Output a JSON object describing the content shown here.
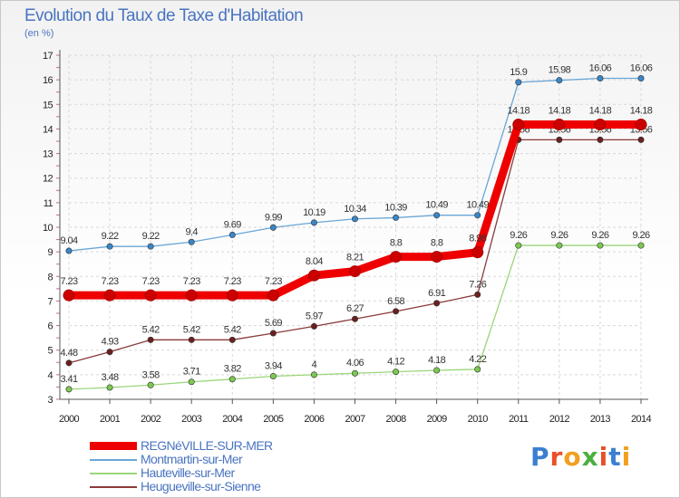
{
  "header": {
    "title": "Evolution du Taux de Taxe d'Habitation",
    "unit": "(en %)"
  },
  "logo": {
    "text": "Proxiti"
  },
  "chart_data": {
    "type": "line",
    "title": "Evolution du Taux de Taxe d'Habitation",
    "ylabel": "(en %)",
    "xlabel": "",
    "x": [
      2000,
      2001,
      2002,
      2003,
      2004,
      2005,
      2006,
      2007,
      2008,
      2009,
      2010,
      2011,
      2012,
      2013,
      2014
    ],
    "ylim": [
      3,
      17
    ],
    "yticks": [
      3,
      4,
      5,
      6,
      7,
      8,
      9,
      10,
      11,
      12,
      13,
      14,
      15,
      16,
      17
    ],
    "grid": true,
    "legend_position": "bottom-left",
    "series": [
      {
        "name": "REGNéVILLE-SUR-MER",
        "values": [
          7.23,
          7.23,
          7.23,
          7.23,
          7.23,
          7.23,
          8.04,
          8.21,
          8.8,
          8.8,
          8.98,
          14.18,
          14.18,
          14.18,
          14.18
        ],
        "labels": [
          "7.23",
          "7.23",
          "7.23",
          "7.23",
          "7.23",
          "7.23",
          "8.04",
          "8.21",
          "8.8",
          "8.8",
          "8.98",
          "14.18",
          "14.18",
          "14.18",
          "14.18"
        ],
        "color": "#ee0000",
        "marker": "#cc0000"
      },
      {
        "name": "Montmartin-sur-Mer",
        "values": [
          9.04,
          9.22,
          9.22,
          9.4,
          9.69,
          9.99,
          10.19,
          10.34,
          10.39,
          10.49,
          10.49,
          15.9,
          15.98,
          16.06,
          16.06
        ],
        "labels": [
          "9.04",
          "9.22",
          "9.22",
          "9.4",
          "9.69",
          "9.99",
          "10.19",
          "10.34",
          "10.39",
          "10.49",
          "10.49",
          "15.9",
          "15.98",
          "16.06",
          "16.06"
        ],
        "color": "#6aa6d6",
        "marker": "#3a86c6"
      },
      {
        "name": "Hauteville-sur-Mer",
        "values": [
          3.41,
          3.48,
          3.58,
          3.71,
          3.82,
          3.94,
          4,
          4.06,
          4.12,
          4.18,
          4.22,
          9.26,
          9.26,
          9.26,
          9.26
        ],
        "labels": [
          "3.41",
          "3.48",
          "3.58",
          "3.71",
          "3.82",
          "3.94",
          "4",
          "4.06",
          "4.12",
          "4.18",
          "4.22",
          "9.26",
          "9.26",
          "9.26",
          "9.26"
        ],
        "color": "#9ad67a",
        "marker": "#7cc852"
      },
      {
        "name": "Heugueville-sur-Sienne",
        "values": [
          4.48,
          4.93,
          5.42,
          5.42,
          5.42,
          5.69,
          5.97,
          6.27,
          6.58,
          6.91,
          7.26,
          13.56,
          13.56,
          13.56,
          13.56
        ],
        "labels": [
          "4.48",
          "4.93",
          "5.42",
          "5.42",
          "5.42",
          "5.69",
          "5.97",
          "6.27",
          "6.58",
          "6.91",
          "7.26",
          "13.56",
          "13.56",
          "13.56",
          "13.56"
        ],
        "color": "#8a3a3a",
        "marker": "#6b1f1f"
      }
    ]
  }
}
